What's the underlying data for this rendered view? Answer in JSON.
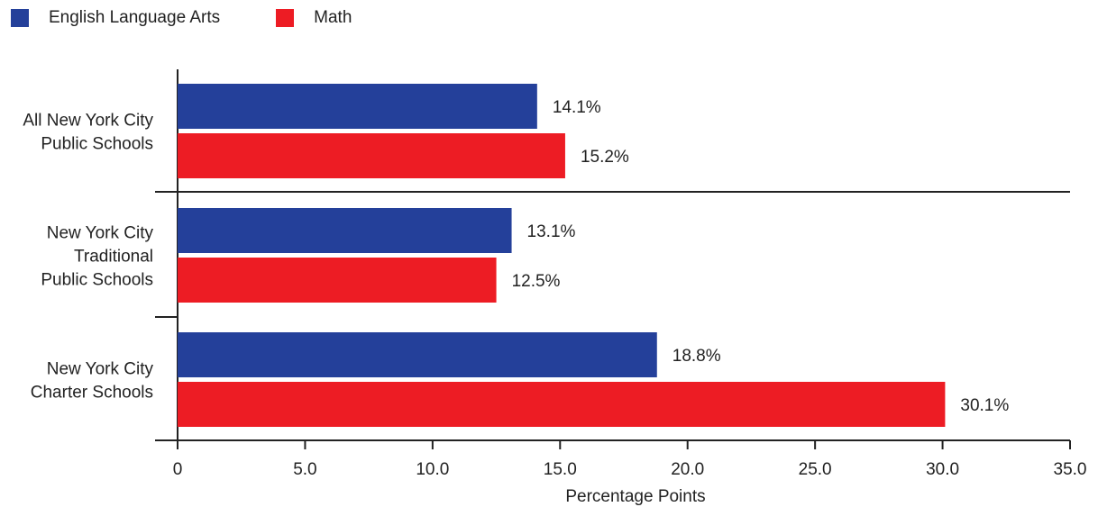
{
  "legend": [
    {
      "label": "English Language Arts",
      "color": "#24409a"
    },
    {
      "label": "Math",
      "color": "#ed1c24"
    }
  ],
  "chart_data": {
    "type": "bar",
    "orientation": "horizontal",
    "categories": [
      [
        "All New York City",
        "Public Schools"
      ],
      [
        "New York City",
        "Traditional",
        "Public Schools"
      ],
      [
        "New York City",
        "Charter Schools"
      ]
    ],
    "series": [
      {
        "name": "English Language Arts",
        "color": "#24409a",
        "values": [
          14.1,
          13.1,
          18.8
        ],
        "labels": [
          "14.1%",
          "13.1%",
          "18.8%"
        ]
      },
      {
        "name": "Math",
        "color": "#ed1c24",
        "values": [
          15.2,
          12.5,
          30.1
        ],
        "labels": [
          "15.2%",
          "12.5%",
          "30.1%"
        ]
      }
    ],
    "xlim": [
      0,
      35
    ],
    "xticks": [
      0,
      5,
      10,
      15,
      20,
      25,
      30,
      35
    ],
    "xtick_labels": [
      "0",
      "5.0",
      "10.0",
      "15.0",
      "20.0",
      "25.0",
      "30.0",
      "35.0"
    ],
    "xlabel": "Percentage Points",
    "ylabel": "",
    "title": "",
    "legend_position": "top-left"
  }
}
